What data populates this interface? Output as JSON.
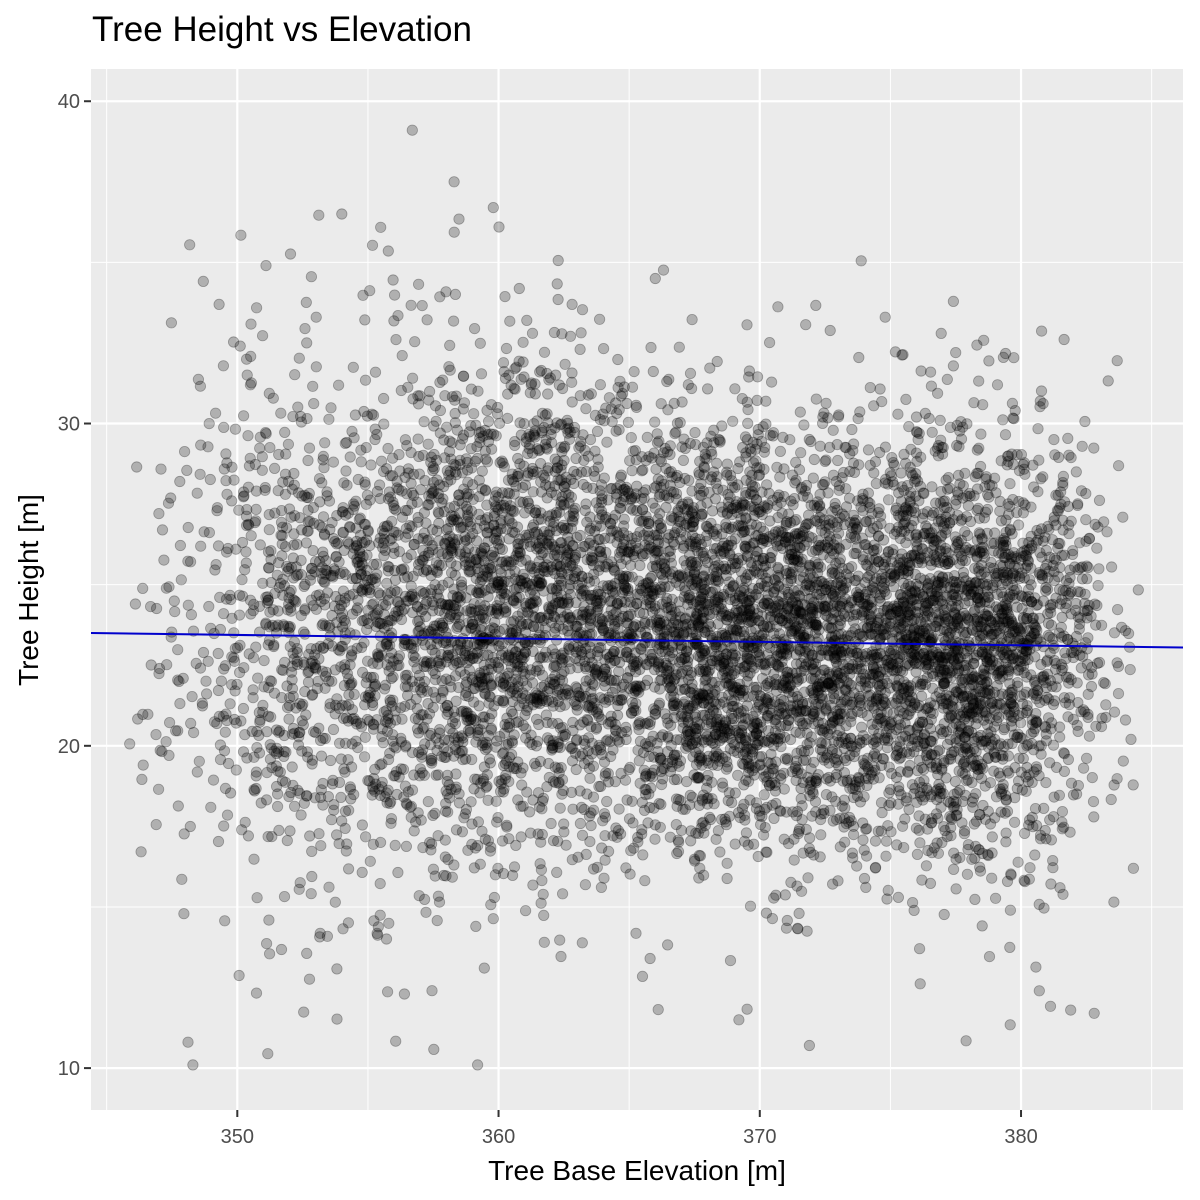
{
  "chart_data": {
    "type": "scatter",
    "title": "Tree Height vs Elevation",
    "xlabel": "Tree Base Elevation [m]",
    "ylabel": "Tree Height [m]",
    "xlim": [
      344.4,
      386.2
    ],
    "ylim": [
      8.7,
      41.0
    ],
    "x_ticks": [
      350,
      360,
      370,
      380
    ],
    "y_ticks": [
      10,
      20,
      30,
      40
    ],
    "x_tick_labels": [
      "350",
      "360",
      "370",
      "380"
    ],
    "y_tick_labels": [
      "10",
      "20",
      "30",
      "40"
    ],
    "grid": true,
    "point_color": "#000000",
    "point_alpha": 0.25,
    "approx_point_count": 8000,
    "clusters": [
      {
        "x_mean": 354,
        "x_sd": 3.5,
        "y_mean": 23.6,
        "y_sd": 4.2,
        "weight": 0.17
      },
      {
        "x_mean": 361.5,
        "x_sd": 3.0,
        "y_mean": 24.2,
        "y_sd": 3.7,
        "weight": 0.24
      },
      {
        "x_mean": 368.5,
        "x_sd": 2.6,
        "y_mean": 23.4,
        "y_sd": 3.4,
        "weight": 0.21
      },
      {
        "x_mean": 373.5,
        "x_sd": 2.6,
        "y_mean": 23.0,
        "y_sd": 3.2,
        "weight": 0.17
      },
      {
        "x_mean": 378.5,
        "x_sd": 2.4,
        "y_mean": 23.2,
        "y_sd": 3.4,
        "weight": 0.21
      }
    ],
    "sample_points": [
      {
        "x": 356.7,
        "y": 39.1
      },
      {
        "x": 358.3,
        "y": 37.5
      },
      {
        "x": 359.8,
        "y": 36.7
      },
      {
        "x": 354.0,
        "y": 36.5
      },
      {
        "x": 351.1,
        "y": 34.9
      },
      {
        "x": 366.0,
        "y": 34.5
      },
      {
        "x": 374.8,
        "y": 33.3
      },
      {
        "x": 348.3,
        "y": 10.1
      },
      {
        "x": 359.2,
        "y": 10.1
      },
      {
        "x": 371.9,
        "y": 10.7
      },
      {
        "x": 382.8,
        "y": 11.7
      },
      {
        "x": 346.1,
        "y": 24.4
      },
      {
        "x": 346.4,
        "y": 19.4
      },
      {
        "x": 384.3,
        "y": 16.2
      },
      {
        "x": 384.0,
        "y": 20.8
      },
      {
        "x": 369.2,
        "y": 11.5
      },
      {
        "x": 365.8,
        "y": 13.4
      },
      {
        "x": 350.5,
        "y": 31.2
      },
      {
        "x": 361.3,
        "y": 32.8
      },
      {
        "x": 377.5,
        "y": 32.2
      },
      {
        "x": 379.1,
        "y": 31.2
      },
      {
        "x": 380.7,
        "y": 12.4
      },
      {
        "x": 381.9,
        "y": 11.8
      },
      {
        "x": 347.8,
        "y": 28.2
      }
    ],
    "regression_line": {
      "color": "#0000cc",
      "x": [
        344.4,
        386.2
      ],
      "y": [
        23.5,
        23.05
      ]
    }
  }
}
